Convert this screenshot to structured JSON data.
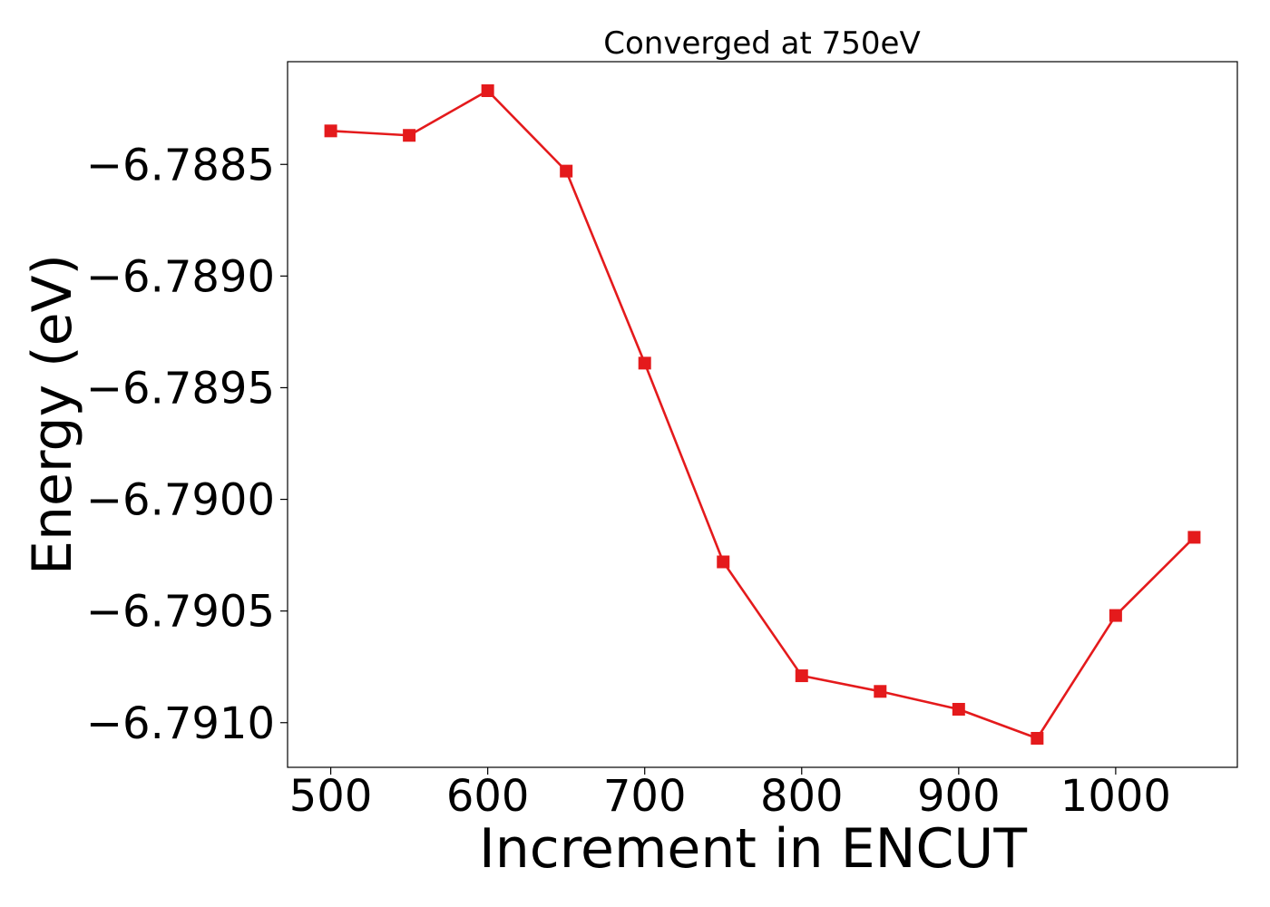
{
  "chart_data": {
    "type": "line",
    "title": "Converged at 750eV",
    "xlabel": "Increment in ENCUT",
    "ylabel": "Energy (eV)",
    "xlim": [
      472.5,
      1077.5
    ],
    "ylim": [
      -6.7912,
      -6.78804
    ],
    "x_ticks": [
      500,
      600,
      700,
      800,
      900,
      1000
    ],
    "y_ticks": [
      -6.791,
      -6.7905,
      -6.79,
      -6.7895,
      -6.789,
      -6.7885
    ],
    "x_tick_labels": [
      "500",
      "600",
      "700",
      "800",
      "900",
      "1000"
    ],
    "y_tick_labels": [
      "−6.7910",
      "−6.7905",
      "−6.7900",
      "−6.7895",
      "−6.7890",
      "−6.7885"
    ],
    "grid": false,
    "legend": "none",
    "series": [
      {
        "color": "#e41a1c",
        "marker": "square",
        "x": [
          500,
          550,
          600,
          650,
          700,
          750,
          800,
          850,
          900,
          950,
          1000,
          1050
        ],
        "y": [
          -6.78835,
          -6.78837,
          -6.78817,
          -6.78853,
          -6.78939,
          -6.79028,
          -6.79079,
          -6.79086,
          -6.79094,
          -6.79107,
          -6.79052,
          -6.79017
        ]
      }
    ]
  }
}
